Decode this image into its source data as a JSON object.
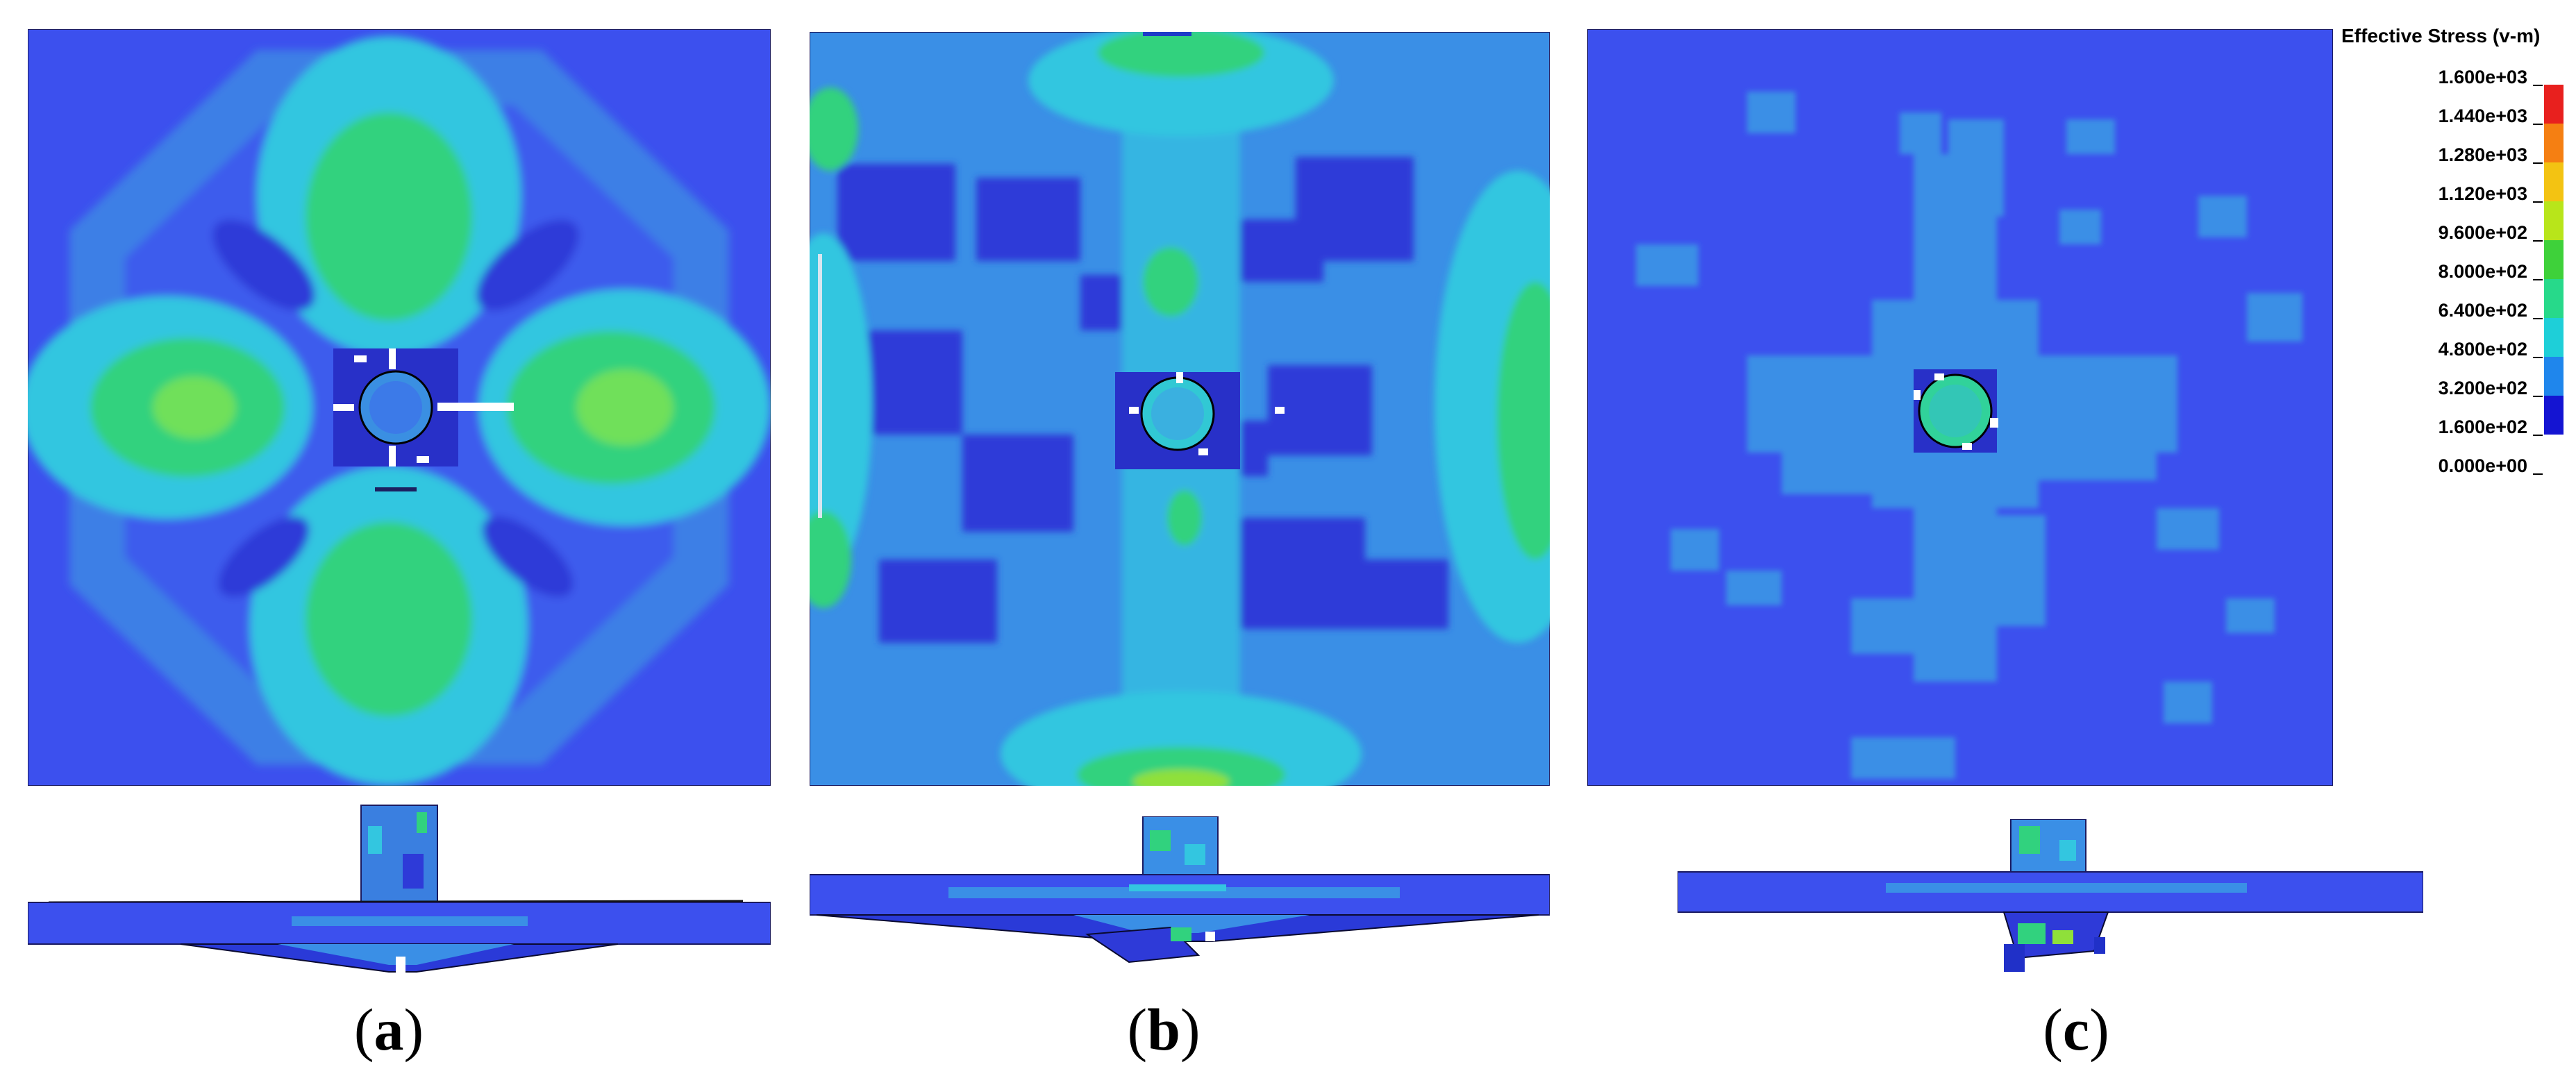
{
  "panels": [
    {
      "id": "a",
      "caption_open": "(",
      "caption_letter": "a",
      "caption_close": ")",
      "pattern": "four-lobe"
    },
    {
      "id": "b",
      "caption_open": "(",
      "caption_letter": "b",
      "caption_close": ")",
      "pattern": "cross-diffuse"
    },
    {
      "id": "c",
      "caption_open": "(",
      "caption_letter": "c",
      "caption_close": ")",
      "pattern": "central-patch"
    }
  ],
  "legend": {
    "title": "Effective Stress (v-m)",
    "tick_labels": [
      "1.600e+03",
      "1.440e+03",
      "1.280e+03",
      "1.120e+03",
      "9.600e+02",
      "8.000e+02",
      "6.400e+02",
      "4.800e+02",
      "3.200e+02",
      "1.600e+02",
      "0.000e+00"
    ],
    "band_colors": [
      "#e8201e",
      "#f57f12",
      "#f3c312",
      "#b8e51a",
      "#3ed13a",
      "#27d98a",
      "#1ecfd8",
      "#1f86ec",
      "#1414d2"
    ]
  },
  "palette": {
    "background_blue": "#3c50ee",
    "dark_blue": "#2e3ad8",
    "light_blue": "#3a9fe6",
    "cyan": "#33c6e0",
    "green": "#31d27e",
    "yellow_green": "#8fe03a"
  }
}
